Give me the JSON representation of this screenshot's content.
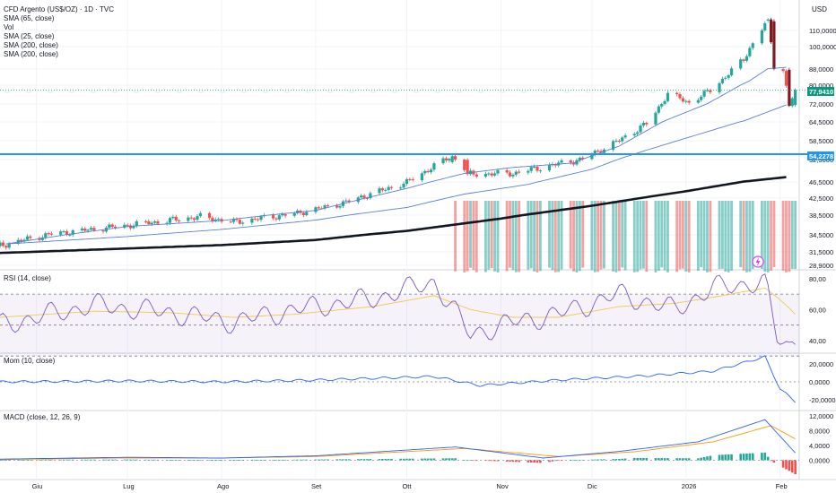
{
  "title": "CFD Argento (US$/OZ) · 1D · TVC",
  "price_scale_label": "USD",
  "colors": {
    "up": "#26a69a",
    "down": "#ef5350",
    "down_dark": "#801922",
    "sma_blue": "#5b7fd6",
    "sma_black": "#131722",
    "level": "#2196f3",
    "rsi": "#7e57c2",
    "rsi_ma": "#f2c94c",
    "macd": "#2962ff",
    "signal": "#ff9800",
    "last_price": "#089981"
  },
  "legend": {
    "line1": "SMA (65, close)",
    "line2": "Vol",
    "line3": "SMA (25, close)",
    "line4": "SMA (200, close)",
    "line5": "SMA (200, close)"
  },
  "labels": {
    "last_price": "77,9410",
    "level_price": "54,2278"
  },
  "indicator_titles": {
    "rsi": "RSI (14, close)",
    "mom": "Mom (10, close)",
    "macd": "MACD (close, 12, 26, 9)"
  },
  "alert_icon": "lightning-icon",
  "chart_data": [
    {
      "type": "line",
      "panel": "price",
      "title": "CFD Argento (US$/OZ) · 1D · TVC",
      "y_ticks": [
        "110,0000",
        "100,0000",
        "88,0000",
        "80,0000",
        "72,0000",
        "64,5000",
        "58,5000",
        "52,5000",
        "46,5000",
        "42,5000",
        "38,5000",
        "34,5000",
        "31,5000",
        "28,9000"
      ],
      "x_ticks": [
        "Giu",
        "Lug",
        "Ago",
        "Set",
        "Ott",
        "Nov",
        "Dic",
        "2026",
        "Feb"
      ],
      "ylim": [
        28.9,
        120
      ],
      "x_range": [
        "2025-05-20",
        "2026-02-07"
      ],
      "series": [
        {
          "name": "SMA (25, close)",
          "x": [
            "2025-05-22",
            "2025-07-01",
            "2025-08-01",
            "2025-09-01",
            "2025-10-01",
            "2025-10-20",
            "2025-11-05",
            "2025-11-25",
            "2025-12-10",
            "2025-12-26",
            "2026-01-08",
            "2026-01-22",
            "2026-01-28",
            "2026-02-03"
          ],
          "values": [
            32.9,
            36.2,
            37.4,
            39.6,
            44.9,
            48.8,
            50.4,
            51.6,
            56.8,
            65.5,
            72.1,
            82.2,
            88.2,
            88.9
          ]
        },
        {
          "name": "SMA (65, close)",
          "x": [
            "2025-05-22",
            "2025-07-01",
            "2025-08-01",
            "2025-09-01",
            "2025-10-01",
            "2025-10-20",
            "2025-11-10",
            "2025-12-01",
            "2025-12-20",
            "2026-01-05",
            "2026-01-20",
            "2026-02-03"
          ],
          "values": [
            32.9,
            34.2,
            35.6,
            37.5,
            40.3,
            43.5,
            45.9,
            49.9,
            55.8,
            60.5,
            64.9,
            71.6
          ]
        },
        {
          "name": "SMA (200, close)",
          "x": [
            "2025-05-20",
            "2025-07-01",
            "2025-08-01",
            "2025-09-01",
            "2025-10-01",
            "2025-11-01",
            "2025-12-01",
            "2026-01-01",
            "2026-01-20",
            "2026-02-03"
          ],
          "values": [
            31.3,
            32.1,
            32.7,
            33.6,
            35.3,
            37.8,
            40.7,
            44.2,
            46.6,
            47.8
          ]
        }
      ],
      "candles_sample": [
        {
          "x": "2025-10-16",
          "open": 51.8,
          "close": 53.6
        },
        {
          "x": "2025-10-21",
          "open": 52.4,
          "close": 48.6
        },
        {
          "x": "2026-01-28",
          "open": 116.5,
          "close": 117.2
        },
        {
          "x": "2026-01-30",
          "open": 116.0,
          "close": 88.0
        },
        {
          "x": "2026-02-04",
          "open": 87.6,
          "close": 71.2
        },
        {
          "x": "2026-02-06",
          "open": 71.6,
          "close": 77.94
        }
      ],
      "horizontal_level": 54.2278,
      "last_price": 77.941,
      "grid": true
    },
    {
      "type": "line",
      "panel": "rsi",
      "title": "RSI (14, close)",
      "y_ticks": [
        "80,00",
        "60,00",
        "40,00"
      ],
      "ylim": [
        33,
        84
      ],
      "bands": [
        70,
        50,
        30
      ],
      "series": [
        {
          "name": "RSI (14, close)",
          "x": [
            "2025-05-20",
            "2025-06-20",
            "2025-07-15",
            "2025-08-05",
            "2025-08-25",
            "2025-09-20",
            "2025-10-10",
            "2025-10-22",
            "2025-11-05",
            "2025-11-20",
            "2025-12-10",
            "2025-12-28",
            "2026-01-10",
            "2026-01-27",
            "2026-01-31",
            "2026-02-04",
            "2026-02-06"
          ],
          "values": [
            50,
            63,
            58,
            52,
            60,
            67,
            78,
            44,
            52,
            57,
            70,
            60,
            74,
            78,
            42,
            36,
            40
          ]
        },
        {
          "values": [
            55,
            59,
            58,
            55,
            57,
            62,
            69,
            60,
            55,
            55,
            62,
            64,
            68,
            74,
            68,
            61,
            57
          ]
        }
      ]
    },
    {
      "type": "line",
      "panel": "mom",
      "title": "Mom (10, close)",
      "y_ticks": [
        "20,0000",
        "0,0000",
        "-20,0000"
      ],
      "ylim": [
        -30,
        30
      ],
      "series": [
        {
          "name": "Mom (10, close)",
          "x": [
            "2025-05-20",
            "2025-07-01",
            "2025-08-01",
            "2025-09-01",
            "2025-10-10",
            "2025-10-25",
            "2025-11-20",
            "2025-12-20",
            "2026-01-10",
            "2026-01-27",
            "2026-02-01",
            "2026-02-06"
          ],
          "values": [
            0,
            1,
            0,
            2,
            6,
            -4,
            2,
            7,
            12,
            28,
            -8,
            -22
          ]
        }
      ]
    },
    {
      "type": "bar",
      "panel": "macd",
      "title": "MACD (close, 12, 26, 9)",
      "y_ticks": [
        "12,0000",
        "8,0000",
        "4,0000",
        "0,0000"
      ],
      "ylim": [
        -5,
        13
      ],
      "series": [
        {
          "name": "MACD",
          "x": [
            "2025-05-20",
            "2025-07-01",
            "2025-08-01",
            "2025-09-01",
            "2025-10-17",
            "2025-11-15",
            "2025-12-10",
            "2026-01-05",
            "2026-01-27",
            "2026-02-06"
          ],
          "values": [
            0.3,
            0.8,
            0.6,
            1.2,
            3.6,
            0.6,
            2.4,
            5.0,
            11.0,
            2.0
          ]
        },
        {
          "name": "Signal",
          "x": [
            "2025-05-20",
            "2025-07-01",
            "2025-08-01",
            "2025-09-01",
            "2025-10-20",
            "2025-11-20",
            "2025-12-15",
            "2026-01-10",
            "2026-01-29",
            "2026-02-06"
          ],
          "values": [
            0.2,
            0.6,
            0.6,
            1.0,
            3.2,
            1.0,
            2.3,
            5.0,
            9.4,
            5.8
          ]
        },
        {
          "name": "Histogram",
          "x": [
            "2026-01-10",
            "2026-01-20",
            "2026-01-27",
            "2026-02-01",
            "2026-02-04",
            "2026-02-06"
          ],
          "values": [
            0.5,
            1.0,
            2.0,
            -1.5,
            -3.5,
            -4.2
          ]
        }
      ]
    }
  ]
}
